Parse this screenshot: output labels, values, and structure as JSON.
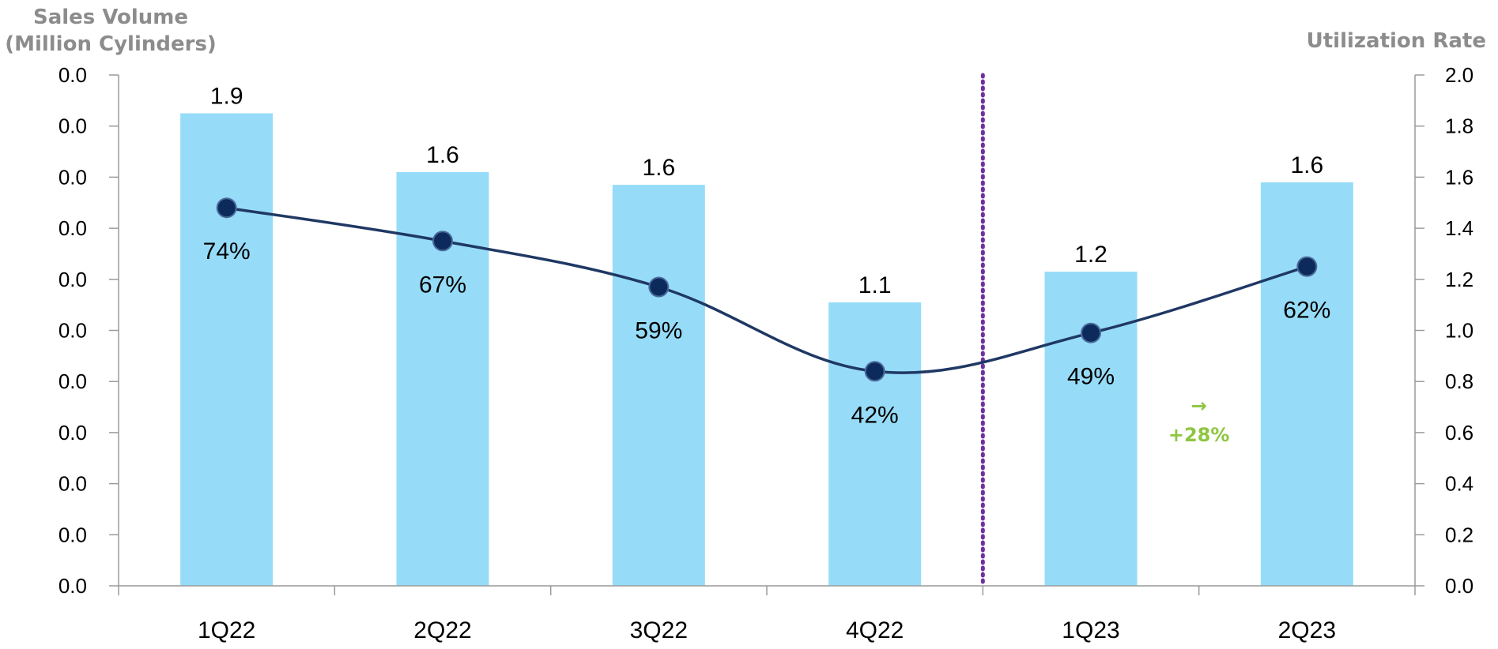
{
  "chart_data": {
    "type": "bar",
    "categories": [
      "1Q22",
      "2Q22",
      "3Q22",
      "4Q22",
      "1Q23",
      "2Q23"
    ],
    "series": [
      {
        "type": "bar",
        "axis": "right",
        "values": [
          1.85,
          1.62,
          1.57,
          1.11,
          1.23,
          1.58
        ],
        "labels": [
          "1.9",
          "1.6",
          "1.6",
          "1.1",
          "1.2",
          "1.6"
        ],
        "color": "#96dcf8"
      },
      {
        "type": "line",
        "axis": "right",
        "values": [
          1.48,
          1.35,
          1.17,
          0.84,
          0.99,
          1.25
        ],
        "labels": [
          "74%",
          "67%",
          "59%",
          "42%",
          "49%",
          "62%"
        ],
        "color": "#1f3864",
        "marker_color": "#0d2a5c"
      }
    ],
    "y_left": {
      "title_lines": [
        "Sales Volume",
        "(Million Cylinders)"
      ],
      "tick_labels": [
        "0.0",
        "0.0",
        "0.0",
        "0.0",
        "0.0",
        "0.0",
        "0.0",
        "0.0",
        "0.0",
        "0.0",
        "0.0"
      ]
    },
    "y_right": {
      "title": "Utilization Rate",
      "min": 0,
      "max": 2,
      "step": 0.2,
      "tick_labels": [
        "0.0",
        "0.2",
        "0.4",
        "0.6",
        "0.8",
        "1.0",
        "1.2",
        "1.4",
        "1.6",
        "1.8",
        "2.0"
      ]
    },
    "divider": {
      "after_category": "4Q22",
      "color": "#7030a0",
      "style": "dotted"
    },
    "annotation": {
      "text": "+28%",
      "symbol": "→",
      "color": "#8dc63f",
      "between_categories": [
        "1Q23",
        "2Q23"
      ],
      "y": 0.68
    },
    "grid": false,
    "legend": "none"
  }
}
